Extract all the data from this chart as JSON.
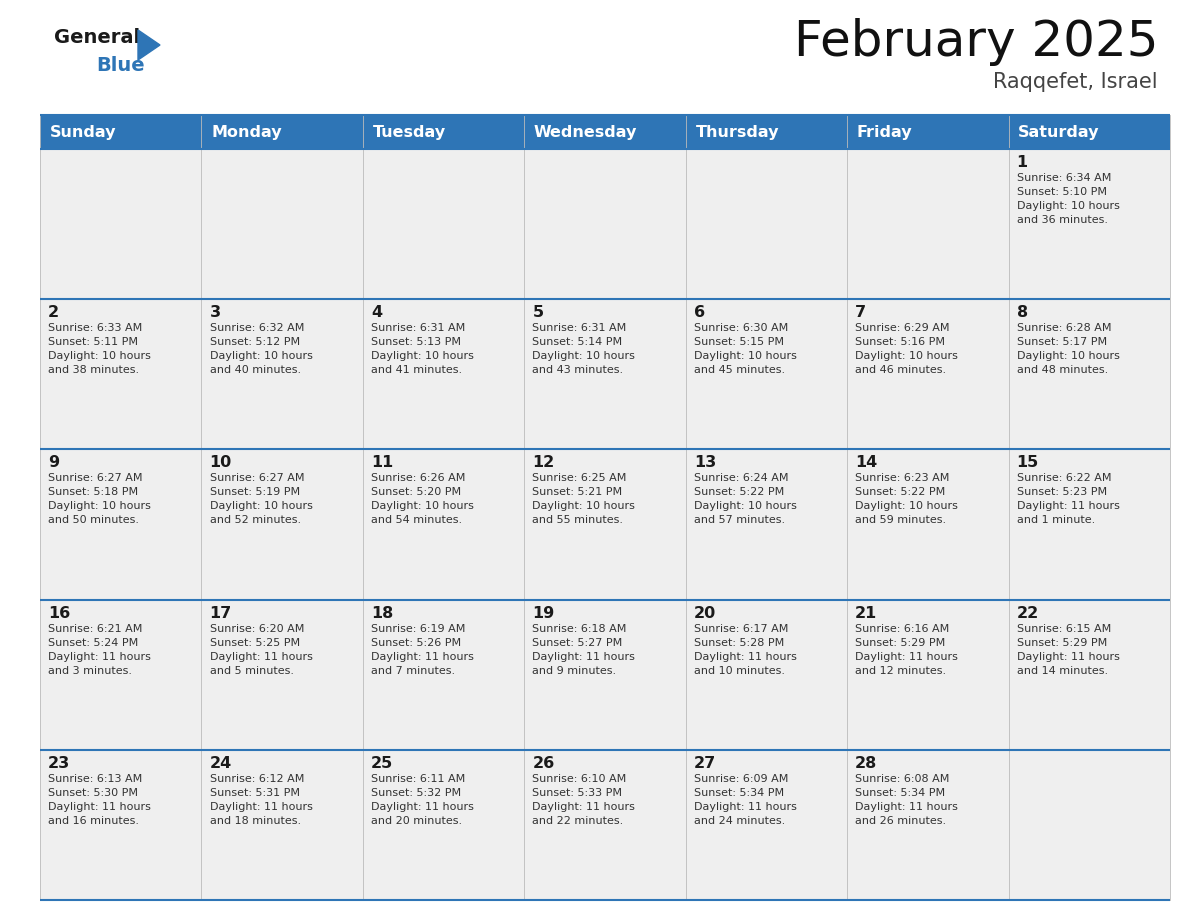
{
  "title": "February 2025",
  "subtitle": "Raqqefet, Israel",
  "header_bg_color": "#2E75B6",
  "header_text_color": "#FFFFFF",
  "cell_bg_color": "#EFEFEF",
  "day_number_color": "#1a1a1a",
  "text_color": "#333333",
  "line_color": "#2E75B6",
  "days_of_week": [
    "Sunday",
    "Monday",
    "Tuesday",
    "Wednesday",
    "Thursday",
    "Friday",
    "Saturday"
  ],
  "calendar_data": [
    [
      {
        "day": null,
        "info": null
      },
      {
        "day": null,
        "info": null
      },
      {
        "day": null,
        "info": null
      },
      {
        "day": null,
        "info": null
      },
      {
        "day": null,
        "info": null
      },
      {
        "day": null,
        "info": null
      },
      {
        "day": 1,
        "info": "Sunrise: 6:34 AM\nSunset: 5:10 PM\nDaylight: 10 hours\nand 36 minutes."
      }
    ],
    [
      {
        "day": 2,
        "info": "Sunrise: 6:33 AM\nSunset: 5:11 PM\nDaylight: 10 hours\nand 38 minutes."
      },
      {
        "day": 3,
        "info": "Sunrise: 6:32 AM\nSunset: 5:12 PM\nDaylight: 10 hours\nand 40 minutes."
      },
      {
        "day": 4,
        "info": "Sunrise: 6:31 AM\nSunset: 5:13 PM\nDaylight: 10 hours\nand 41 minutes."
      },
      {
        "day": 5,
        "info": "Sunrise: 6:31 AM\nSunset: 5:14 PM\nDaylight: 10 hours\nand 43 minutes."
      },
      {
        "day": 6,
        "info": "Sunrise: 6:30 AM\nSunset: 5:15 PM\nDaylight: 10 hours\nand 45 minutes."
      },
      {
        "day": 7,
        "info": "Sunrise: 6:29 AM\nSunset: 5:16 PM\nDaylight: 10 hours\nand 46 minutes."
      },
      {
        "day": 8,
        "info": "Sunrise: 6:28 AM\nSunset: 5:17 PM\nDaylight: 10 hours\nand 48 minutes."
      }
    ],
    [
      {
        "day": 9,
        "info": "Sunrise: 6:27 AM\nSunset: 5:18 PM\nDaylight: 10 hours\nand 50 minutes."
      },
      {
        "day": 10,
        "info": "Sunrise: 6:27 AM\nSunset: 5:19 PM\nDaylight: 10 hours\nand 52 minutes."
      },
      {
        "day": 11,
        "info": "Sunrise: 6:26 AM\nSunset: 5:20 PM\nDaylight: 10 hours\nand 54 minutes."
      },
      {
        "day": 12,
        "info": "Sunrise: 6:25 AM\nSunset: 5:21 PM\nDaylight: 10 hours\nand 55 minutes."
      },
      {
        "day": 13,
        "info": "Sunrise: 6:24 AM\nSunset: 5:22 PM\nDaylight: 10 hours\nand 57 minutes."
      },
      {
        "day": 14,
        "info": "Sunrise: 6:23 AM\nSunset: 5:22 PM\nDaylight: 10 hours\nand 59 minutes."
      },
      {
        "day": 15,
        "info": "Sunrise: 6:22 AM\nSunset: 5:23 PM\nDaylight: 11 hours\nand 1 minute."
      }
    ],
    [
      {
        "day": 16,
        "info": "Sunrise: 6:21 AM\nSunset: 5:24 PM\nDaylight: 11 hours\nand 3 minutes."
      },
      {
        "day": 17,
        "info": "Sunrise: 6:20 AM\nSunset: 5:25 PM\nDaylight: 11 hours\nand 5 minutes."
      },
      {
        "day": 18,
        "info": "Sunrise: 6:19 AM\nSunset: 5:26 PM\nDaylight: 11 hours\nand 7 minutes."
      },
      {
        "day": 19,
        "info": "Sunrise: 6:18 AM\nSunset: 5:27 PM\nDaylight: 11 hours\nand 9 minutes."
      },
      {
        "day": 20,
        "info": "Sunrise: 6:17 AM\nSunset: 5:28 PM\nDaylight: 11 hours\nand 10 minutes."
      },
      {
        "day": 21,
        "info": "Sunrise: 6:16 AM\nSunset: 5:29 PM\nDaylight: 11 hours\nand 12 minutes."
      },
      {
        "day": 22,
        "info": "Sunrise: 6:15 AM\nSunset: 5:29 PM\nDaylight: 11 hours\nand 14 minutes."
      }
    ],
    [
      {
        "day": 23,
        "info": "Sunrise: 6:13 AM\nSunset: 5:30 PM\nDaylight: 11 hours\nand 16 minutes."
      },
      {
        "day": 24,
        "info": "Sunrise: 6:12 AM\nSunset: 5:31 PM\nDaylight: 11 hours\nand 18 minutes."
      },
      {
        "day": 25,
        "info": "Sunrise: 6:11 AM\nSunset: 5:32 PM\nDaylight: 11 hours\nand 20 minutes."
      },
      {
        "day": 26,
        "info": "Sunrise: 6:10 AM\nSunset: 5:33 PM\nDaylight: 11 hours\nand 22 minutes."
      },
      {
        "day": 27,
        "info": "Sunrise: 6:09 AM\nSunset: 5:34 PM\nDaylight: 11 hours\nand 24 minutes."
      },
      {
        "day": 28,
        "info": "Sunrise: 6:08 AM\nSunset: 5:34 PM\nDaylight: 11 hours\nand 26 minutes."
      },
      {
        "day": null,
        "info": null
      }
    ]
  ],
  "logo_triangle_color": "#2E75B6",
  "figwidth": 11.88,
  "figheight": 9.18,
  "dpi": 100
}
